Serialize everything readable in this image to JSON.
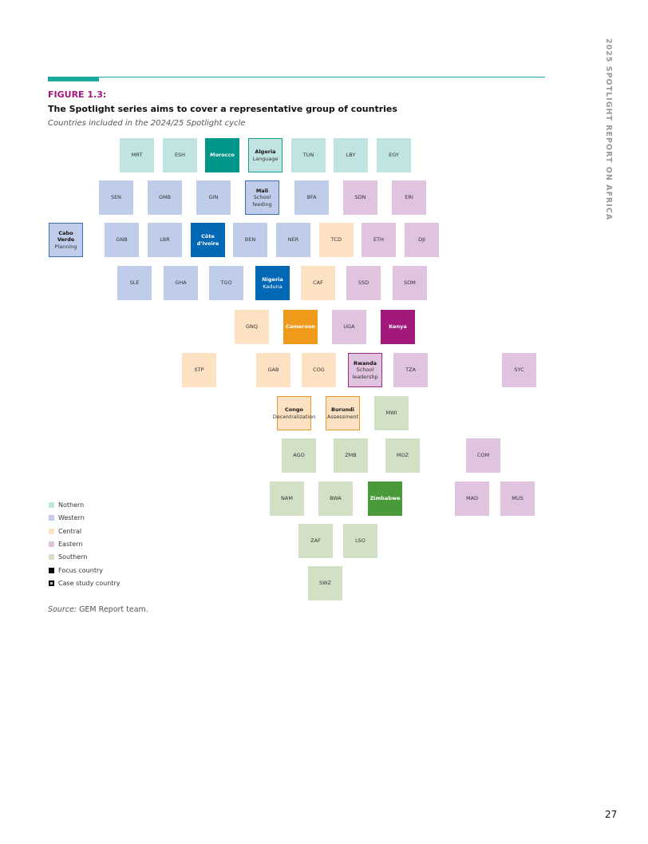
{
  "side_text": "2025 SPOTLIGHT REPORT ON AFRICA",
  "figure": {
    "label": "FIGURE 1.3:",
    "title": "The Spotlight series aims to cover a representative group of countries",
    "subtitle": "Countries included in the 2024/25 Spotlight cycle"
  },
  "tiles": [
    {
      "name": "MRT"
    },
    {
      "name": "ESH"
    },
    {
      "name": "Morocco"
    },
    {
      "name": "Algeria",
      "detail": "Language"
    },
    {
      "name": "TUN"
    },
    {
      "name": "LBY"
    },
    {
      "name": "EGY"
    },
    {
      "name": "SEN"
    },
    {
      "name": "GMB"
    },
    {
      "name": "GIN"
    },
    {
      "name": "Mali",
      "detail": "School feeding"
    },
    {
      "name": "BFA"
    },
    {
      "name": "SDN"
    },
    {
      "name": "ERI"
    },
    {
      "name": "Cabo Verde",
      "detail": "Planning"
    },
    {
      "name": "GNB"
    },
    {
      "name": "LBR"
    },
    {
      "name": "Côte d'Ivoire"
    },
    {
      "name": "BEN"
    },
    {
      "name": "NER"
    },
    {
      "name": "TCD"
    },
    {
      "name": "ETH"
    },
    {
      "name": "DJI"
    },
    {
      "name": "SLE"
    },
    {
      "name": "GHA"
    },
    {
      "name": "TGO"
    },
    {
      "name": "Nigeria",
      "detail": "Kaduna"
    },
    {
      "name": "CAF"
    },
    {
      "name": "SSD"
    },
    {
      "name": "SOM"
    },
    {
      "name": "GNQ"
    },
    {
      "name": "Cameroon"
    },
    {
      "name": "UGA"
    },
    {
      "name": "Kenya"
    },
    {
      "name": "STP"
    },
    {
      "name": "GAB"
    },
    {
      "name": "COG"
    },
    {
      "name": "Rwanda",
      "detail": "School leadershp"
    },
    {
      "name": "TZA"
    },
    {
      "name": "SYC"
    },
    {
      "name": "Congo",
      "detail": "Decentralization"
    },
    {
      "name": "Burundi",
      "detail": "Assessment"
    },
    {
      "name": "MWI"
    },
    {
      "name": "AGO"
    },
    {
      "name": "ZMB"
    },
    {
      "name": "MOZ"
    },
    {
      "name": "COM"
    },
    {
      "name": "NAM"
    },
    {
      "name": "BWA"
    },
    {
      "name": "Zimbabwe"
    },
    {
      "name": "MAD"
    },
    {
      "name": "MUS"
    },
    {
      "name": "ZAF"
    },
    {
      "name": "LSO"
    },
    {
      "name": "SWZ"
    }
  ],
  "legend": [
    "Nothern",
    "Western",
    "Central",
    "Eastern",
    "Southern",
    "Focus country",
    "Case study country"
  ],
  "source": {
    "label": "Source:",
    "text": " GEM Report team."
  },
  "page_number": "27"
}
